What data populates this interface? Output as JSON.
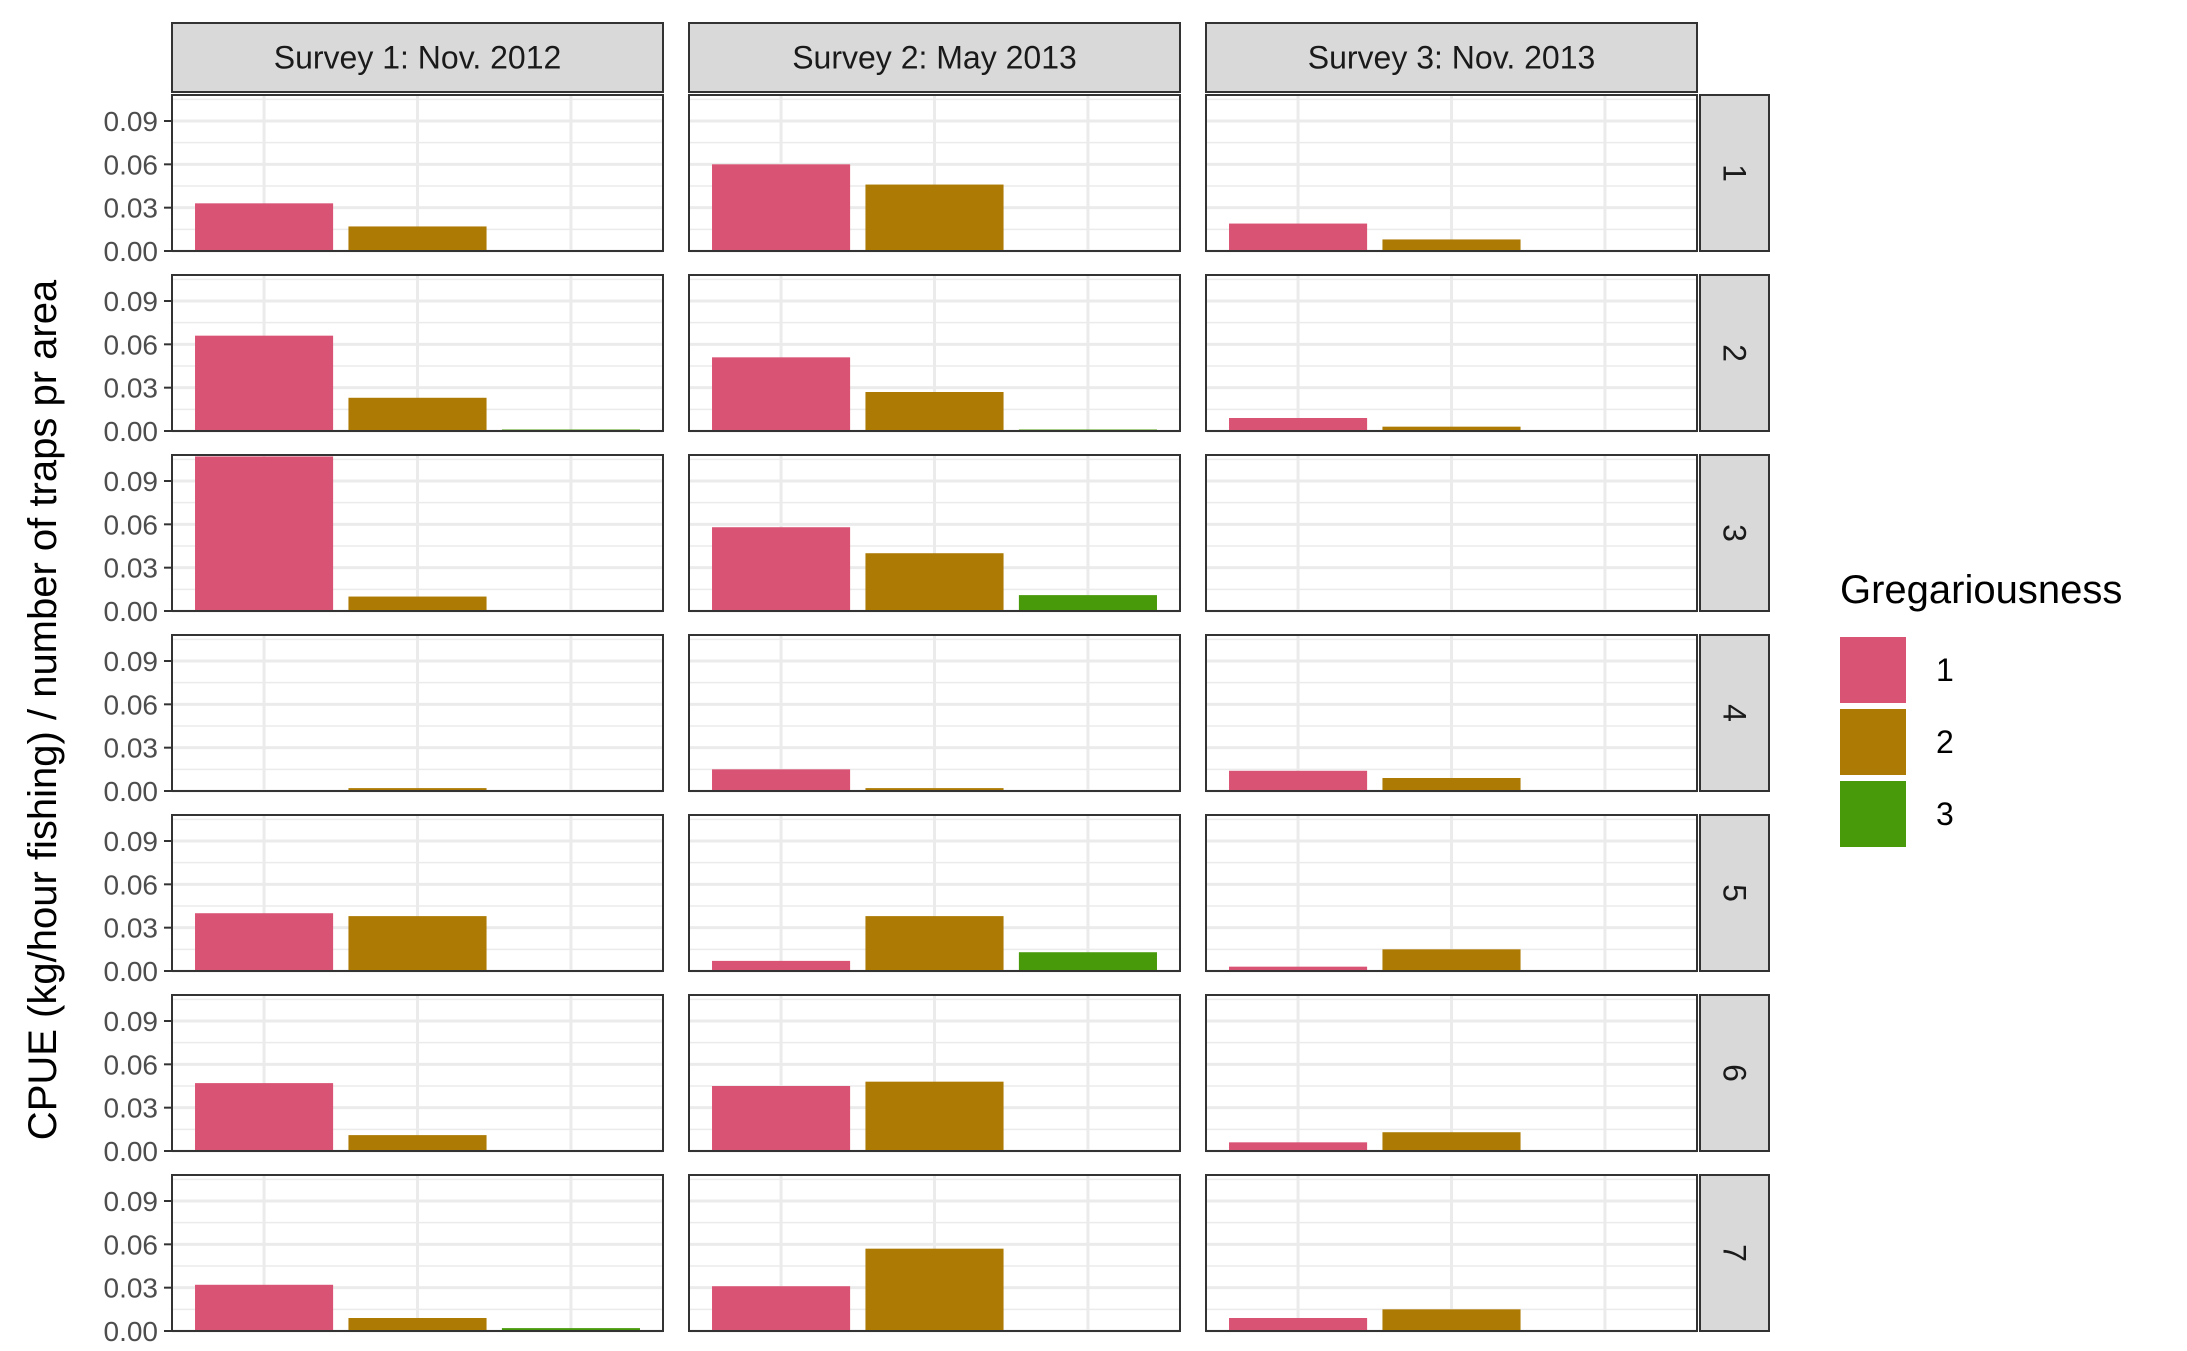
{
  "chart_data": {
    "type": "bar",
    "ylabel": "CPUE (kg/hour fishing) / number of traps pr area",
    "ylim": [
      0,
      0.108
    ],
    "yticks": [
      "0.00",
      "0.03",
      "0.06",
      "0.09"
    ],
    "ytick_values": [
      0,
      0.03,
      0.06,
      0.09
    ],
    "grid": true,
    "legend_position": "right",
    "columns": [
      "Survey 1: Nov. 2012",
      "Survey 2: May 2013",
      "Survey 3: Nov. 2013"
    ],
    "rows": [
      "1",
      "2",
      "3",
      "4",
      "5",
      "6",
      "7"
    ],
    "categories": [
      "1",
      "2",
      "3"
    ],
    "legend": {
      "title": "Gregariousness",
      "items": [
        {
          "label": "1",
          "color": "#D95374"
        },
        {
          "label": "2",
          "color": "#AD7A04"
        },
        {
          "label": "3",
          "color": "#489A0B"
        }
      ]
    },
    "values": [
      [
        [
          0.033,
          0.017,
          null
        ],
        [
          0.06,
          0.046,
          null
        ],
        [
          0.019,
          0.008,
          null
        ]
      ],
      [
        [
          0.066,
          0.023,
          0.001
        ],
        [
          0.051,
          0.027,
          0.001
        ],
        [
          0.009,
          0.003,
          null
        ]
      ],
      [
        [
          0.107,
          0.01,
          null
        ],
        [
          0.058,
          0.04,
          0.011
        ],
        [
          null,
          null,
          null
        ]
      ],
      [
        [
          null,
          0.002,
          null
        ],
        [
          0.015,
          0.002,
          null
        ],
        [
          0.014,
          0.009,
          null
        ]
      ],
      [
        [
          0.04,
          0.038,
          null
        ],
        [
          0.007,
          0.038,
          0.013
        ],
        [
          0.003,
          0.015,
          null
        ]
      ],
      [
        [
          0.047,
          0.011,
          null
        ],
        [
          0.045,
          0.048,
          null
        ],
        [
          0.006,
          0.013,
          null
        ]
      ],
      [
        [
          0.032,
          0.009,
          0.002
        ],
        [
          0.031,
          0.057,
          null
        ],
        [
          0.009,
          0.015,
          null
        ]
      ]
    ]
  }
}
